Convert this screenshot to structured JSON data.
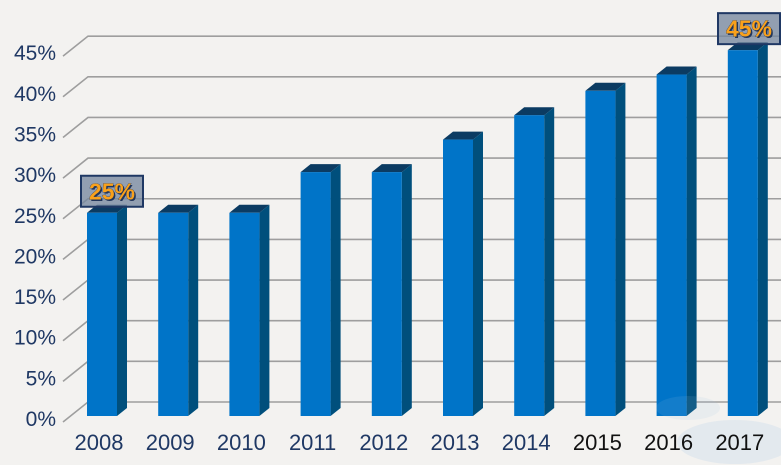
{
  "chart_data": {
    "type": "bar",
    "title": "",
    "xlabel": "",
    "ylabel": "",
    "categories": [
      "2008",
      "2009",
      "2010",
      "2011",
      "2012",
      "2013",
      "2014",
      "2015",
      "2016",
      "2017"
    ],
    "values": [
      25,
      25,
      25,
      30,
      30,
      34,
      37,
      40,
      42,
      45
    ],
    "ylim": [
      0,
      45
    ],
    "y_tick_step": 5,
    "y_tick_labels": [
      "0%",
      "5%",
      "10%",
      "15%",
      "20%",
      "25%",
      "30%",
      "35%",
      "40%",
      "45%"
    ],
    "grid": true,
    "legend": false,
    "style_3d": true,
    "annotations": [
      {
        "text": "25%",
        "category": "2008"
      },
      {
        "text": "45%",
        "category": "2017"
      }
    ],
    "category_label_colors": [
      "#1F3864",
      "#1F3864",
      "#1F3864",
      "#1F3864",
      "#1F3864",
      "#1F3864",
      "#1F3864",
      "#111111",
      "#111111",
      "#111111"
    ],
    "colors": {
      "background": "#F3F2F0",
      "gridline": "#9E9E9E",
      "bar_front": "#0074C8",
      "bar_side": "#004F7C",
      "bar_top": "#0B3B62",
      "axis_label": "#1F3864",
      "callout_fill": "#76889F",
      "callout_border": "#1F3864",
      "callout_text": "#F9A11B",
      "callout_text_shadow": "#22365C",
      "watermark_tint": "#9CC4E8"
    }
  }
}
